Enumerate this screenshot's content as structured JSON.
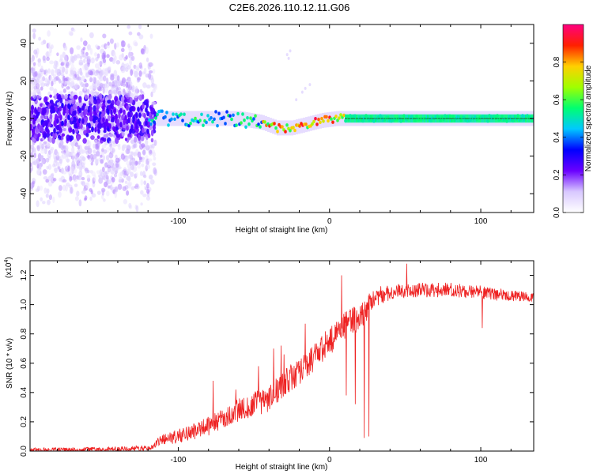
{
  "figure": {
    "title": "C2E6.2026.110.12.11.G06"
  },
  "chart_data": [
    {
      "type": "heatmap",
      "name": "spectrogram",
      "xlabel": "Height of straight line (km)",
      "ylabel": "Frequency (Hz)",
      "xlim": [
        -198,
        135
      ],
      "ylim": [
        -50,
        50
      ],
      "xticks": [
        -100,
        0,
        100
      ],
      "yticks": [
        -40,
        -20,
        0,
        20,
        40
      ],
      "colorbar": {
        "label": "Normalized spectral amplitude",
        "range": [
          0,
          1
        ],
        "ticks": [
          0.0,
          0.2,
          0.4,
          0.6,
          0.8
        ],
        "colormap": "rainbow",
        "colors": [
          "#ffffff",
          "#d8c8ff",
          "#6a00ff",
          "#0000ff",
          "#00c8ff",
          "#00ff70",
          "#a0ff00",
          "#ffd000",
          "#ff2000",
          "#ff0080"
        ]
      },
      "ridge": {
        "description": "Dominant frequency band versus height",
        "x": [
          -198,
          -150,
          -120,
          -100,
          -80,
          -60,
          -45,
          -35,
          -25,
          -15,
          -5,
          5,
          15,
          40,
          80,
          135
        ],
        "freq": [
          0,
          0,
          0,
          0,
          0,
          0,
          -2,
          -5,
          -5,
          -3,
          -1,
          0,
          0,
          0,
          0,
          0
        ]
      }
    },
    {
      "type": "line",
      "name": "snr",
      "xlabel": "Height of straight line (km)",
      "ylabel": "SNR (10 * v/v)",
      "scale_label": "(x10",
      "scale_exponent": "4",
      "xlim": [
        -198,
        135
      ],
      "ylim": [
        0,
        1.3
      ],
      "xticks": [
        -100,
        0,
        100
      ],
      "yticks": [
        0.0,
        0.2,
        0.4,
        0.6,
        0.8,
        1.0,
        1.2
      ],
      "color": "#ee2222",
      "trend": {
        "x": [
          -198,
          -150,
          -120,
          -110,
          -100,
          -80,
          -60,
          -40,
          -20,
          0,
          10,
          20,
          30,
          40,
          50,
          80,
          100,
          135
        ],
        "y": [
          0.01,
          0.01,
          0.02,
          0.08,
          0.1,
          0.17,
          0.28,
          0.36,
          0.55,
          0.75,
          0.85,
          0.92,
          1.05,
          1.08,
          1.1,
          1.1,
          1.08,
          1.05
        ]
      },
      "noise": {
        "x": [
          -198,
          -120,
          -100,
          -60,
          -20,
          0,
          20,
          40,
          100,
          135
        ],
        "amplitude": [
          0.012,
          0.02,
          0.05,
          0.08,
          0.1,
          0.1,
          0.1,
          0.05,
          0.05,
          0.03
        ]
      },
      "spikes": [
        {
          "x": -77,
          "y": 0.48
        },
        {
          "x": -62,
          "y": 0.42
        },
        {
          "x": -47,
          "y": 0.58
        },
        {
          "x": -37,
          "y": 0.7
        },
        {
          "x": -32,
          "y": 0.72
        },
        {
          "x": -30,
          "y": 0.66
        },
        {
          "x": -16,
          "y": 0.87
        },
        {
          "x": 8,
          "y": 1.2
        },
        {
          "x": 11,
          "y": 0.38
        },
        {
          "x": 14,
          "y": 0.96
        },
        {
          "x": 17,
          "y": 0.32
        },
        {
          "x": 23,
          "y": 0.09
        },
        {
          "x": 26,
          "y": 0.1
        },
        {
          "x": 51,
          "y": 1.28
        },
        {
          "x": 101,
          "y": 0.84
        }
      ]
    }
  ]
}
